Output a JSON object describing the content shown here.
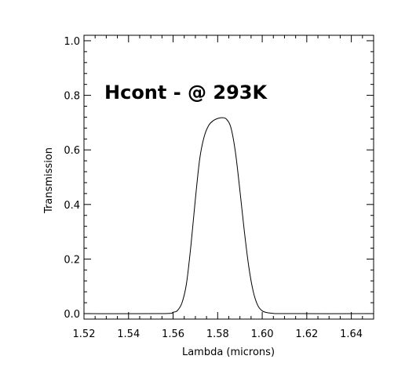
{
  "chart_data": {
    "type": "line",
    "title": "",
    "annotation": "Hcont  -  @ 293K",
    "xlabel": "Lambda (microns)",
    "ylabel": "Transmission",
    "xlim": [
      1.52,
      1.65
    ],
    "ylim": [
      -0.02,
      1.02
    ],
    "xticks": [
      1.52,
      1.54,
      1.56,
      1.58,
      1.6,
      1.62,
      1.64
    ],
    "xtick_labels": [
      "1.52",
      "1.54",
      "1.56",
      "1.58",
      "1.60",
      "1.62",
      "1.64"
    ],
    "yticks": [
      0.0,
      0.2,
      0.4,
      0.6,
      0.8,
      1.0
    ],
    "ytick_labels": [
      "0.0",
      "0.2",
      "0.4",
      "0.6",
      "0.8",
      "1.0"
    ],
    "grid": false,
    "line_color": "#000000",
    "series": [
      {
        "x": [
          1.52,
          1.555,
          1.56,
          1.562,
          1.564,
          1.566,
          1.568,
          1.57,
          1.572,
          1.574,
          1.576,
          1.578,
          1.58,
          1.582,
          1.584,
          1.586,
          1.588,
          1.59,
          1.592,
          1.594,
          1.596,
          1.598,
          1.6,
          1.602,
          1.605,
          1.61,
          1.65
        ],
        "y": [
          0.0,
          0.0,
          0.005,
          0.012,
          0.04,
          0.11,
          0.25,
          0.42,
          0.57,
          0.65,
          0.69,
          0.707,
          0.715,
          0.718,
          0.712,
          0.68,
          0.59,
          0.45,
          0.3,
          0.17,
          0.08,
          0.03,
          0.01,
          0.004,
          0.001,
          0.0,
          0.0
        ]
      }
    ]
  }
}
